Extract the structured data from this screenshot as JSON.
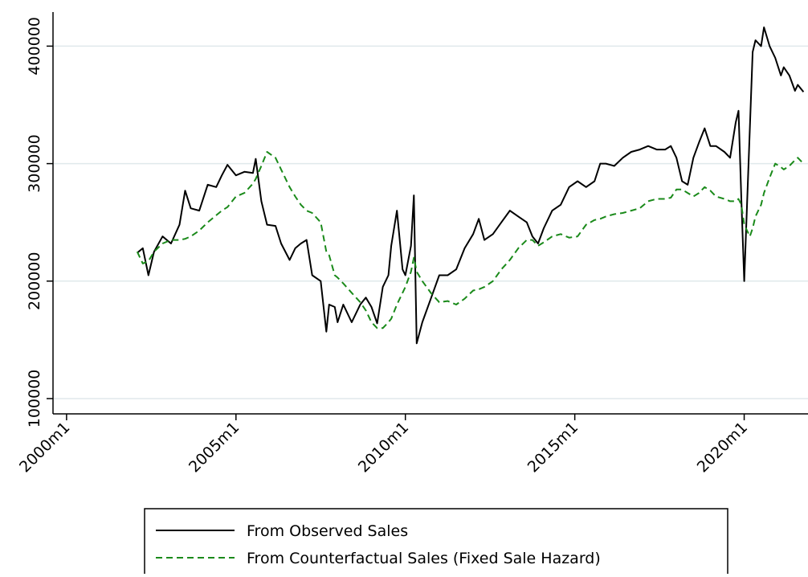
{
  "chart_data": {
    "type": "line",
    "x": [
      505,
      507,
      509,
      511,
      514,
      517,
      520,
      522,
      524,
      527,
      530,
      533,
      535,
      537,
      540,
      543,
      546,
      547,
      549,
      551,
      554,
      556,
      559,
      561,
      563,
      565,
      567,
      570,
      572,
      573,
      575,
      576,
      578,
      581,
      584,
      586,
      588,
      590,
      592,
      594,
      595,
      597,
      598,
      599,
      600,
      602,
      603,
      604,
      606,
      609,
      612,
      615,
      618,
      621,
      624,
      626,
      628,
      631,
      634,
      637,
      640,
      643,
      645,
      647,
      649,
      652,
      655,
      658,
      661,
      664,
      667,
      669,
      671,
      674,
      677,
      680,
      683,
      686,
      689,
      692,
      694,
      696,
      698,
      700,
      702,
      704,
      706,
      708,
      710,
      713,
      715,
      717,
      718,
      719,
      720,
      722,
      723,
      724,
      726,
      727,
      729,
      731,
      733,
      734,
      736,
      738,
      739,
      741
    ],
    "series": [
      {
        "name": "From Observed Sales",
        "color": "#000000",
        "dash": "solid",
        "values": [
          224000,
          228000,
          205000,
          225000,
          238000,
          232000,
          248000,
          277000,
          262000,
          260000,
          282000,
          280000,
          290000,
          299000,
          290000,
          293000,
          292000,
          304000,
          268000,
          248000,
          247000,
          232000,
          218000,
          228000,
          232000,
          235000,
          205000,
          200000,
          157000,
          180000,
          178000,
          165000,
          180000,
          165000,
          180000,
          186000,
          178000,
          164000,
          195000,
          205000,
          230000,
          260000,
          235000,
          210000,
          205000,
          230000,
          273000,
          147000,
          165000,
          185000,
          205000,
          205000,
          210000,
          228000,
          240000,
          253000,
          235000,
          240000,
          250000,
          260000,
          255000,
          250000,
          238000,
          232000,
          245000,
          260000,
          265000,
          280000,
          285000,
          280000,
          285000,
          300000,
          300000,
          298000,
          305000,
          310000,
          312000,
          315000,
          312000,
          312000,
          315000,
          305000,
          285000,
          282000,
          305000,
          318000,
          330000,
          315000,
          315000,
          310000,
          305000,
          335000,
          345000,
          270000,
          200000,
          330000,
          395000,
          405000,
          400000,
          416000,
          400000,
          390000,
          375000,
          382000,
          375000,
          362000,
          367000,
          361000
        ]
      },
      {
        "name": "From Counterfactual Sales (Fixed Sale Hazard)",
        "color": "#1a8a1a",
        "dash": "dashed",
        "values": [
          225000,
          215000,
          217000,
          225000,
          232000,
          235000,
          235000,
          236000,
          238000,
          243000,
          250000,
          256000,
          260000,
          263000,
          272000,
          275000,
          283000,
          287000,
          298000,
          310000,
          305000,
          295000,
          280000,
          272000,
          265000,
          260000,
          258000,
          250000,
          225000,
          222000,
          205000,
          203000,
          198000,
          190000,
          182000,
          175000,
          165000,
          160000,
          160000,
          165000,
          168000,
          180000,
          185000,
          190000,
          195000,
          208000,
          220000,
          208000,
          200000,
          190000,
          182000,
          183000,
          180000,
          185000,
          192000,
          193000,
          195000,
          200000,
          210000,
          218000,
          228000,
          235000,
          235000,
          230000,
          233000,
          238000,
          240000,
          237000,
          238000,
          248000,
          252000,
          253000,
          255000,
          257000,
          258000,
          260000,
          262000,
          268000,
          270000,
          270000,
          271000,
          278000,
          278000,
          275000,
          272000,
          275000,
          280000,
          277000,
          272000,
          270000,
          268000,
          268000,
          270000,
          265000,
          248000,
          238000,
          245000,
          255000,
          265000,
          275000,
          288000,
          300000,
          297000,
          295000,
          298000,
          303000,
          305000,
          300000
        ]
      }
    ],
    "xlim": [
      475.2,
      742.6
    ],
    "xticks": [
      {
        "value": 480,
        "label": "2000m1"
      },
      {
        "value": 540,
        "label": "2005m1"
      },
      {
        "value": 600,
        "label": "2010m1"
      },
      {
        "value": 660,
        "label": "2015m1"
      },
      {
        "value": 720,
        "label": "2020m1"
      }
    ],
    "ylim": [
      87000,
      429000
    ],
    "yticks": [
      100000,
      200000,
      300000,
      400000
    ],
    "grid": true,
    "legend": "bottom"
  }
}
